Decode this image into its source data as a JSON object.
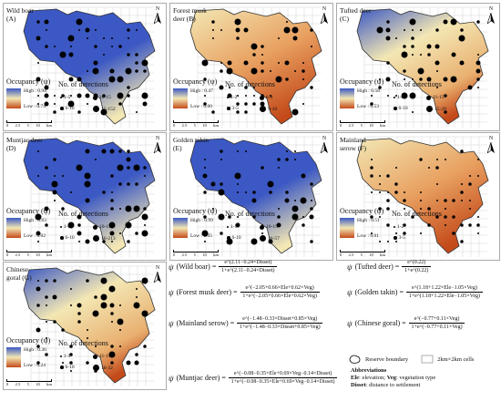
{
  "colors": {
    "high": "#3b58c4",
    "mid": "#f3e7b4",
    "low": "#c44a1a",
    "dot": "#000000",
    "grid": "#bbbbbb"
  },
  "common": {
    "occupancy_label": "Occupancy (ψ)",
    "detections_label": "No. of detections",
    "scale_km": "km",
    "scale_ticks": [
      "0",
      "2.5",
      "5",
      "10"
    ],
    "north": "N"
  },
  "panels": [
    {
      "id": "A",
      "title": "Wild boar (A)",
      "high": "High : 0.94",
      "low": "Low : 0.74",
      "bins": [
        "1-5",
        "6-10",
        "10-15",
        "15-152"
      ],
      "pattern": "high"
    },
    {
      "id": "B",
      "title": "Forest musk deer (B)",
      "high": "High : 0.47",
      "low": "Low : 0.00",
      "bins": [
        "1-2",
        "3-5",
        "6-8",
        "9-10"
      ],
      "pattern": "low"
    },
    {
      "id": "C",
      "title": "Tufted deer (C)",
      "high": "High : 0.58",
      "low": "Low : 0.53",
      "bins": [
        "1-5",
        "6-10",
        "11-15",
        "15-29"
      ],
      "pattern": "mid"
    },
    {
      "id": "D",
      "title": "Muntjac deer (D)",
      "high": "High : 0.83",
      "low": "Low : 0.02",
      "bins": [
        "1-5",
        "6-10",
        "10-15",
        "16-213"
      ],
      "pattern": "high"
    },
    {
      "id": "E",
      "title": "Golden takin (E)",
      "high": "High : 0.99",
      "low": "Low : 0.05",
      "bins": [
        "1-5",
        "6-10",
        "10-15",
        "16-57"
      ],
      "pattern": "high"
    },
    {
      "id": "F",
      "title": "Mainland serow (F)",
      "high": "High : 0.51",
      "low": "Low : 0.01",
      "bins": [
        "1-2",
        "3-5"
      ],
      "pattern": "low"
    },
    {
      "id": "G",
      "title": "Chinese goral (G)",
      "high": "High : 0.36",
      "low": "Low : 0.24",
      "bins": [
        "1-5",
        "6-10",
        "11-15",
        "16-32"
      ],
      "pattern": "mid"
    }
  ],
  "equations": [
    {
      "name": "(Wild boar) =",
      "num": "e^(2.11−0.24×Disset)",
      "den": "1+e^(2.11−0.24×Disset)"
    },
    {
      "name": "(Tufted deer) =",
      "num": "e^(0.22)",
      "den": "1+e^(0.22)"
    },
    {
      "name": "(Forest musk deer) =",
      "num": "e^(−2.05+0.66×Ele+0.62×Veg)",
      "den": "1+e^(−2.05+0.66×Ele+0.62×Veg)"
    },
    {
      "name": "(Golden takin) =",
      "num": "e^(1.18+1.22×Ele−1.05×Veg)",
      "den": "1+e^(1.18+1.22×Ele−1.05×Veg)"
    },
    {
      "name": "(Mainland serow) =",
      "num": "e^(−1.48−0.33×Disset+0.85×Veg)",
      "den": "1+e^(−1.48−0.33×Disset+0.85×Veg)"
    },
    {
      "name": "(Chinese goral) =",
      "num": "e^(−0.77+0.11×Veg)",
      "den": "1+e^(−0.77+0.11×Veg)"
    },
    {
      "name": "(Muntjac deer) =",
      "num": "e^(−0.08−0.35×Ele+0.69×Veg−0.14×Disset)",
      "den": "1+e^(−0.08−0.35×Ele+0.69×Veg−0.14×Disset)"
    }
  ],
  "legend": {
    "reserve": "Reserve boundary",
    "cells": "2km×2km cells"
  },
  "abbreviations": {
    "title": "Abbreviations",
    "ele_key": "Ele",
    "ele_val": ": elevation;",
    "veg_key": "Veg",
    "veg_val": ": vegetation type",
    "dis_key": "Disset",
    "dis_val": ": distance to settlement"
  },
  "psi": "ψ"
}
